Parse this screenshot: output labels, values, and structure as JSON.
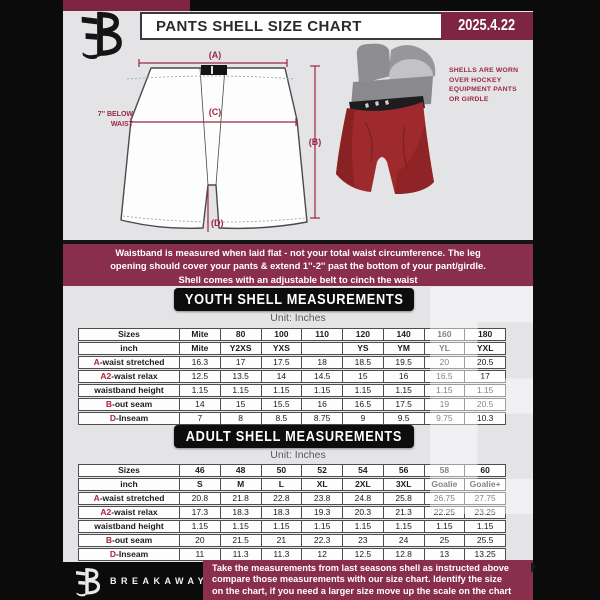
{
  "header": {
    "title": "PANTS SHELL SIZE CHART",
    "date": "2025.4.22"
  },
  "diagram": {
    "label_a": "(A)",
    "label_b": "(B)",
    "label_c": "(C)",
    "label_d": "(D)",
    "below_waist_line1": "7'' BELOW",
    "below_waist_line2": "WAIST",
    "shell_note_lines": [
      "SHELLS ARE WORN",
      "OVER HOCKEY",
      "EQUIPMENT PANTS",
      "OR GIRDLE"
    ]
  },
  "banner": {
    "lines": [
      "Waistband is measured when laid flat - not your total waist circumference. The leg",
      "opening should cover your pants & extend 1''-2'' past the bottom of your pant/girdle.",
      "Shell comes with an adjustable belt to cinch the waist"
    ]
  },
  "youth": {
    "title": "YOUTH SHELL MEASUREMENTS",
    "unit": "Unit: Inches",
    "table": {
      "rows": [
        {
          "prefix": "",
          "label": "Sizes",
          "header": true,
          "values": [
            "Mite",
            "80",
            "100",
            "110",
            "120",
            "140",
            "160",
            "180"
          ]
        },
        {
          "prefix": "",
          "label": "inch",
          "header": true,
          "values": [
            "Mite",
            "Y2XS",
            "YXS",
            "",
            "YS",
            "YM",
            "YL",
            "YXL"
          ]
        },
        {
          "prefix": "A",
          "label": "-waist stretched",
          "header": false,
          "values": [
            "16.3",
            "17",
            "17.5",
            "18",
            "18.5",
            "19.5",
            "20",
            "20.5"
          ]
        },
        {
          "prefix": "A2",
          "label": "-waist relax",
          "header": false,
          "values": [
            "12.5",
            "13.5",
            "14",
            "14.5",
            "15",
            "16",
            "16.5",
            "17"
          ]
        },
        {
          "prefix": "",
          "label": "waistband height",
          "header": false,
          "values": [
            "1.15",
            "1.15",
            "1.15",
            "1.15",
            "1.15",
            "1.15",
            "1.15",
            "1.15"
          ]
        },
        {
          "prefix": "B",
          "label": "-out seam",
          "header": false,
          "values": [
            "14",
            "15",
            "15.5",
            "16",
            "16.5",
            "17.5",
            "19",
            "20.5"
          ]
        },
        {
          "prefix": "D",
          "label": "-Inseam",
          "header": false,
          "values": [
            "7",
            "8",
            "8.5",
            "8.75",
            "9",
            "9.5",
            "9.75",
            "10.3"
          ]
        }
      ]
    }
  },
  "adult": {
    "title": "ADULT SHELL MEASUREMENTS",
    "unit": "Unit: Inches",
    "table": {
      "rows": [
        {
          "prefix": "",
          "label": "Sizes",
          "header": true,
          "values": [
            "46",
            "48",
            "50",
            "52",
            "54",
            "56",
            "58",
            "60"
          ]
        },
        {
          "prefix": "",
          "label": "inch",
          "header": true,
          "values": [
            "S",
            "M",
            "L",
            "XL",
            "2XL",
            "3XL",
            "Goalie",
            "Goalie+"
          ]
        },
        {
          "prefix": "A",
          "label": "-waist stretched",
          "header": false,
          "values": [
            "20.8",
            "21.8",
            "22.8",
            "23.8",
            "24.8",
            "25.8",
            "26.75",
            "27.75"
          ]
        },
        {
          "prefix": "A2",
          "label": "-waist relax",
          "header": false,
          "values": [
            "17.3",
            "18.3",
            "18.3",
            "19.3",
            "20.3",
            "21.3",
            "22.25",
            "23.25"
          ]
        },
        {
          "prefix": "",
          "label": "waistband height",
          "header": false,
          "values": [
            "1.15",
            "1.15",
            "1.15",
            "1.15",
            "1.15",
            "1.15",
            "1.15",
            "1.15"
          ]
        },
        {
          "prefix": "B",
          "label": "-out seam",
          "header": false,
          "values": [
            "20",
            "21.5",
            "21",
            "22.3",
            "23",
            "24",
            "25",
            "25.5"
          ]
        },
        {
          "prefix": "D",
          "label": "-Inseam",
          "header": false,
          "values": [
            "11",
            "11.3",
            "11.3",
            "12",
            "12.5",
            "12.8",
            "13",
            "13.25"
          ]
        }
      ]
    }
  },
  "footer": {
    "brand": "BREAKAWAY",
    "note_lines": [
      "Take the measurements from last seasons shell as instructed above",
      "compare those measurements  with our size chart. Identify the size",
      "on the chart, if you need a larger size move up the scale on the chart"
    ]
  },
  "colors": {
    "maroon_banner": "#8a2e4e",
    "maroon_dark": "#7d2542",
    "diagram_maroon": "#9c2743",
    "table_letter_red": "#b0203c",
    "shell_red": "#9e2a2d",
    "page_gray": "#e4e4e7",
    "frame_black": "#0b0b0c"
  },
  "watermark_glyph": "B"
}
